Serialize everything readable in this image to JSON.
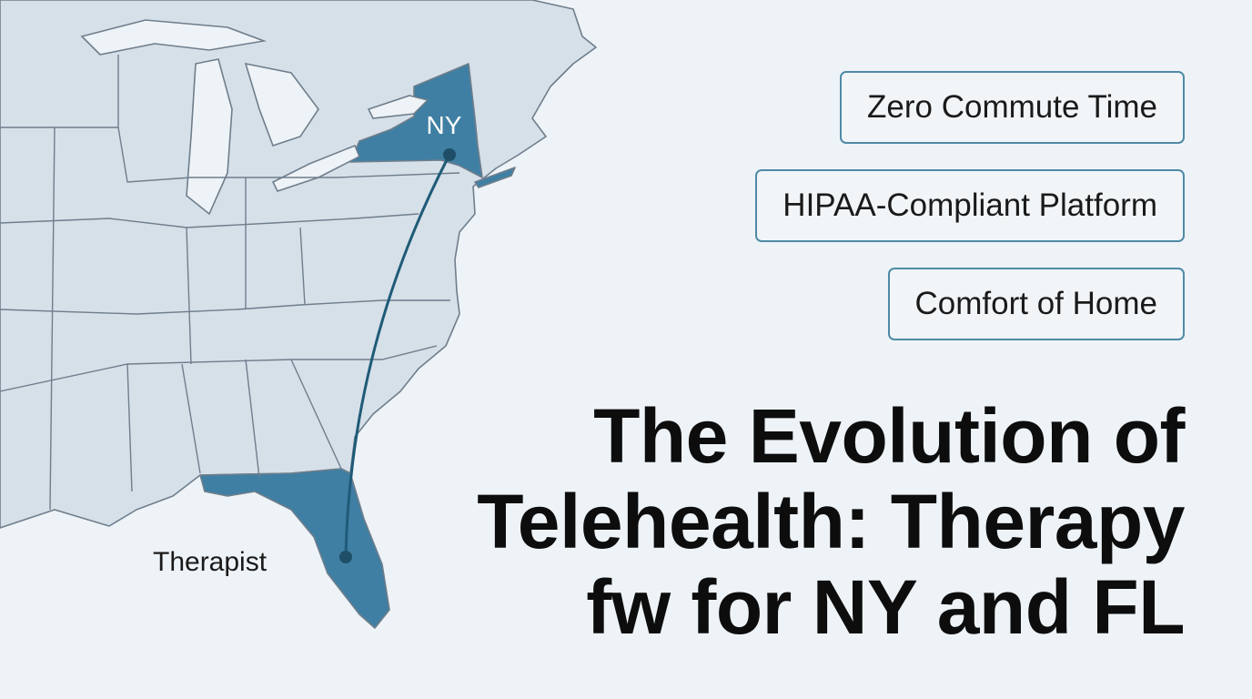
{
  "map": {
    "ny_label": "NY",
    "origin_label": "Therapist"
  },
  "features": [
    "Zero Commute Time",
    "HIPAA-Compliant Platform",
    "Comfort of Home"
  ],
  "title": {
    "lines": [
      "The Evolution of",
      "Telehealth: Therapy",
      "fw for NY and FL"
    ]
  }
}
